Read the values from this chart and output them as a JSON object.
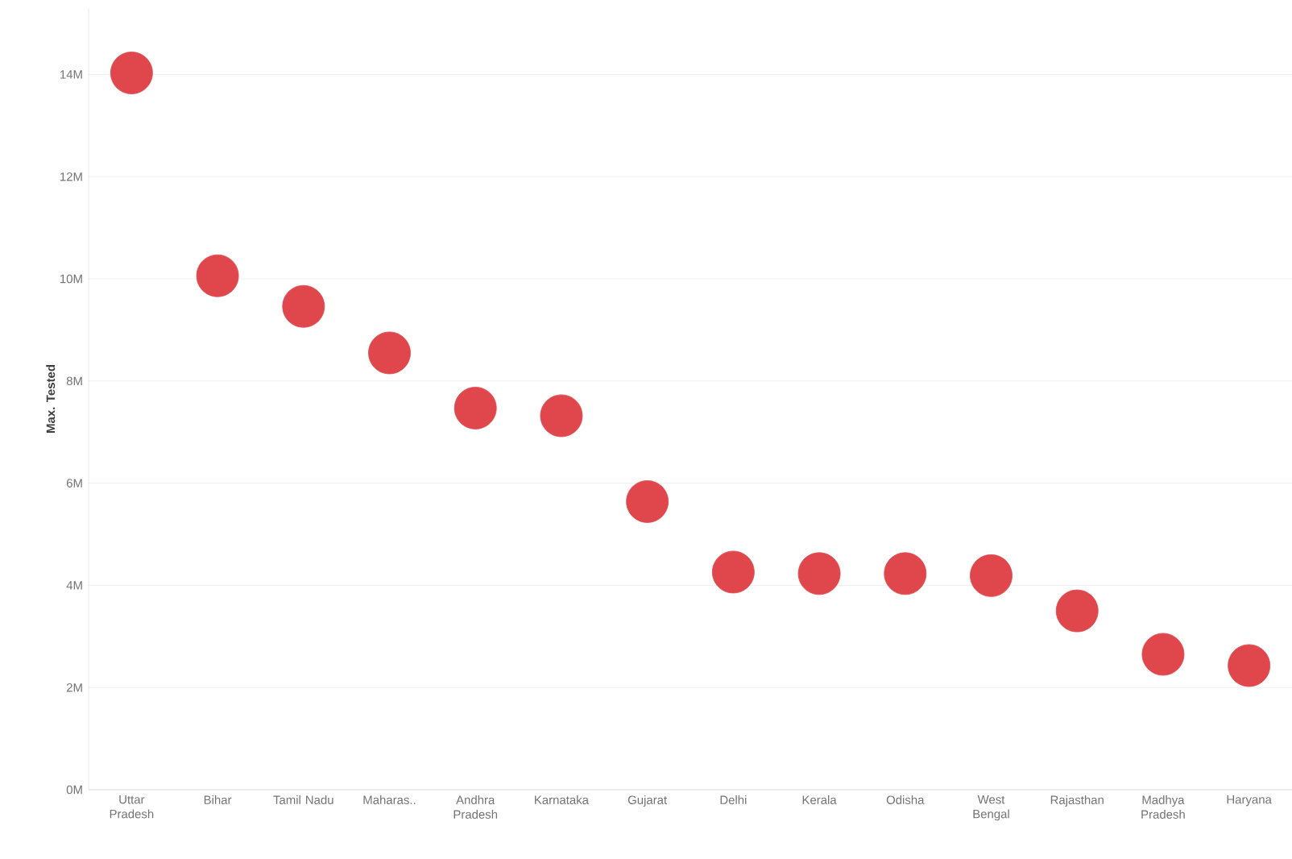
{
  "chart_data": {
    "type": "scatter",
    "ylabel": "Max. Tested",
    "categories": [
      "Uttar Pradesh",
      "Bihar",
      "Tamil Nadu",
      "Maharas..",
      "Andhra Pradesh",
      "Karnataka",
      "Gujarat",
      "Delhi",
      "Kerala",
      "Odisha",
      "West Bengal",
      "Rajasthan",
      "Madhya Pradesh",
      "Haryana"
    ],
    "values": [
      14.03,
      10.06,
      9.46,
      8.55,
      7.47,
      7.32,
      5.64,
      4.26,
      4.23,
      4.23,
      4.19,
      3.5,
      2.65,
      2.43
    ],
    "color": "#e0474c",
    "marker": "circle",
    "grid": "y",
    "ylim": [
      0,
      15.3
    ],
    "yticks": [
      {
        "value": 0,
        "label": "0M"
      },
      {
        "value": 2,
        "label": "2M"
      },
      {
        "value": 4,
        "label": "4M"
      },
      {
        "value": 6,
        "label": "6M"
      },
      {
        "value": 8,
        "label": "8M"
      },
      {
        "value": 10,
        "label": "10M"
      },
      {
        "value": 12,
        "label": "12M"
      },
      {
        "value": 14,
        "label": "14M"
      }
    ]
  }
}
